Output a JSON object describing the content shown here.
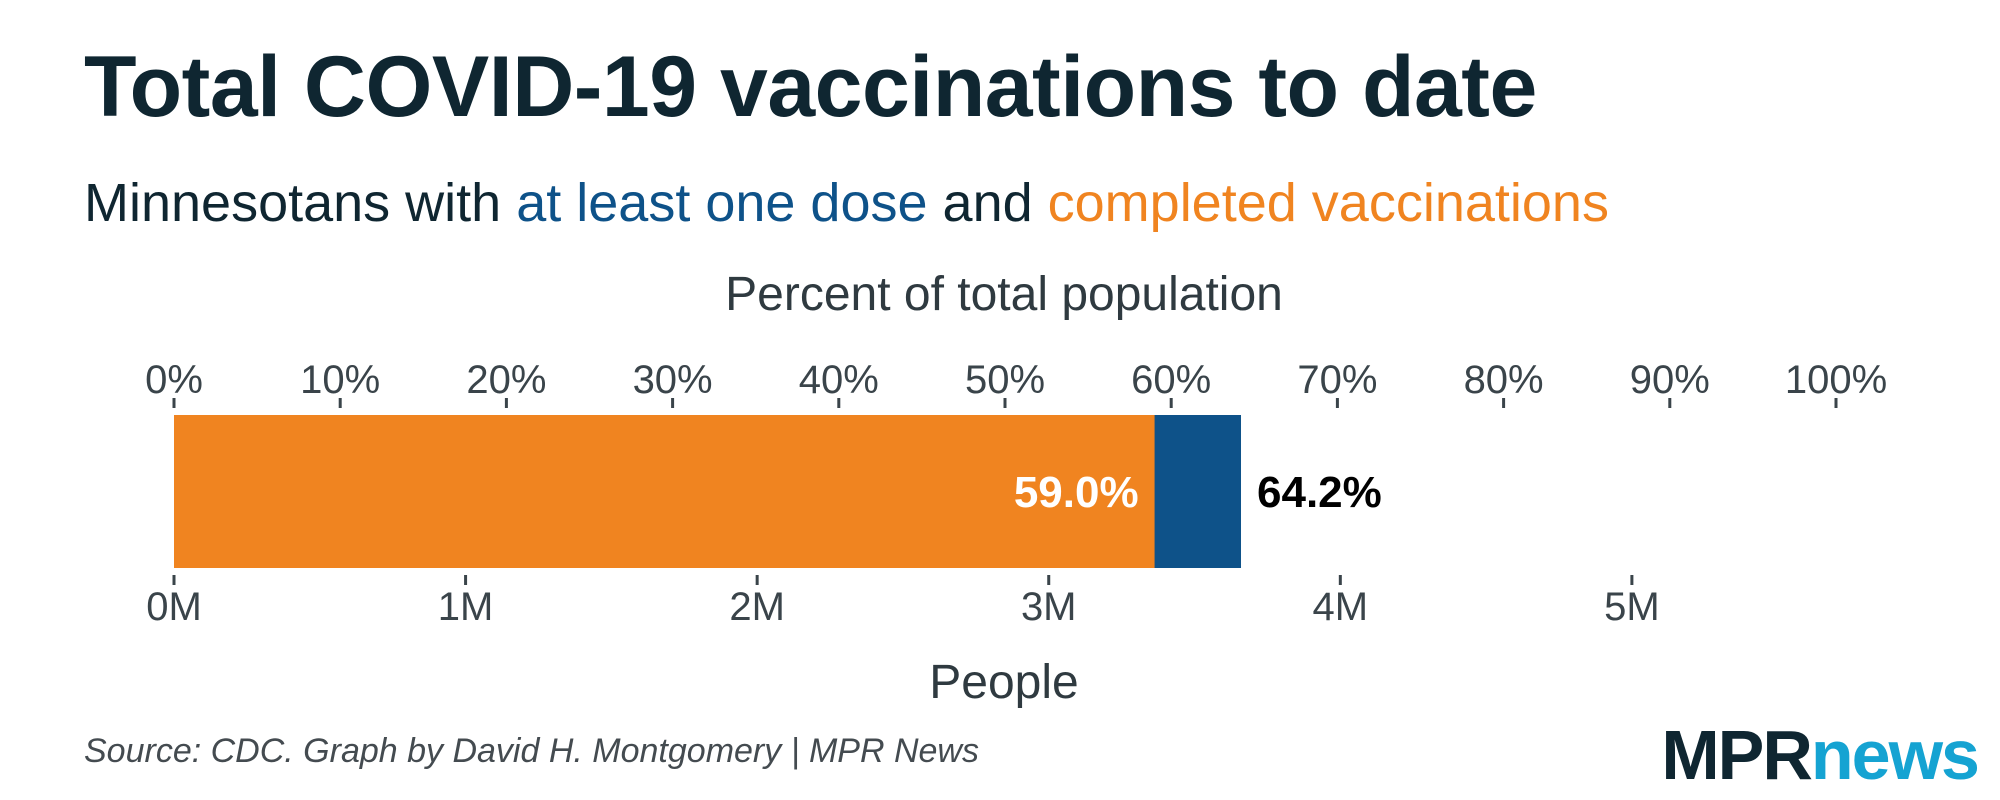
{
  "title": "Total COVID-19 vaccinations to date",
  "subtitle": {
    "prefix": "Minnesotans with ",
    "series1": "at least one dose",
    "middle": " and ",
    "series2": "completed vaccinations"
  },
  "source": "Source: CDC. Graph by David H. Montgomery | MPR News",
  "logo": {
    "part1": "MPR",
    "part2": "news"
  },
  "colors": {
    "one_dose": "#0e5289",
    "completed": "#f08420",
    "text": "#0f2631",
    "axis": "#3a444a"
  },
  "chart_data": {
    "type": "bar",
    "orientation": "horizontal",
    "stacked": "overlay",
    "top_axis_label": "Percent of total population",
    "bottom_axis_label": "People",
    "top_axis": {
      "min": 0,
      "max": 100,
      "unit": "%",
      "ticks": [
        "0%",
        "10%",
        "20%",
        "30%",
        "40%",
        "50%",
        "60%",
        "70%",
        "80%",
        "90%",
        "100%"
      ]
    },
    "bottom_axis": {
      "min": 0,
      "max": 5,
      "unit": "M",
      "ticks": [
        "0M",
        "1M",
        "2M",
        "3M",
        "4M",
        "5M"
      ]
    },
    "series": [
      {
        "name": "at least one dose",
        "value": 64.2,
        "label": "64.2%",
        "color": "#0e5289"
      },
      {
        "name": "completed vaccinations",
        "value": 59.0,
        "label": "59.0%",
        "color": "#f08420"
      }
    ]
  }
}
